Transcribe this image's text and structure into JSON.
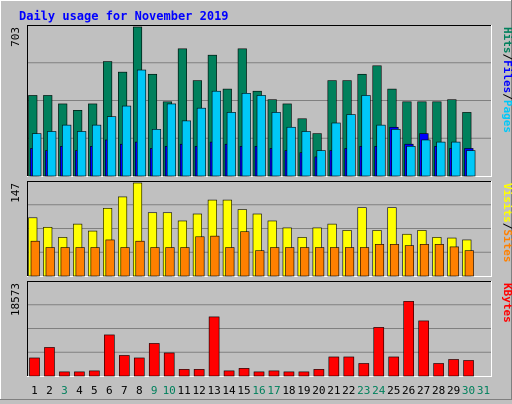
{
  "colors": {
    "background": "#c0c0c0",
    "plot_background": "#c0c0c0",
    "title": "#0000ff",
    "hits": "#00805c",
    "files": "#0000ff",
    "pages": "#00c8f8",
    "visits": "#ffff00",
    "sites": "#ff8000",
    "kbytes": "#ff0000",
    "weekend_day": "#00805c",
    "weekday": "#000000"
  },
  "chart_data": [
    {
      "type": "bar",
      "panel": "hits-files-pages",
      "title": "Daily usage for November 2019",
      "y_max_label": "703",
      "ylim": [
        0,
        703
      ],
      "legend": [
        {
          "text": "Pages",
          "color_key": "pages"
        },
        {
          "text": "/",
          "color_key": "separator"
        },
        {
          "text": "Files",
          "color_key": "files"
        },
        {
          "text": "/",
          "color_key": "separator"
        },
        {
          "text": "Hits",
          "color_key": "hits"
        }
      ],
      "categories": [
        "1",
        "2",
        "3",
        "4",
        "5",
        "6",
        "7",
        "8",
        "9",
        "10",
        "11",
        "12",
        "13",
        "14",
        "15",
        "16",
        "17",
        "18",
        "19",
        "20",
        "21",
        "22",
        "23",
        "24",
        "25",
        "26",
        "27",
        "28",
        "29",
        "30",
        "31"
      ],
      "series": [
        {
          "name": "Hits",
          "values": [
            380,
            380,
            340,
            310,
            340,
            540,
            490,
            703,
            480,
            350,
            600,
            450,
            570,
            410,
            600,
            400,
            360,
            340,
            270,
            200,
            450,
            450,
            480,
            520,
            410,
            350,
            350,
            350,
            360,
            300,
            0
          ]
        },
        {
          "name": "Files",
          "values": [
            130,
            120,
            140,
            120,
            140,
            170,
            150,
            160,
            130,
            140,
            150,
            140,
            160,
            150,
            140,
            140,
            130,
            120,
            110,
            90,
            120,
            130,
            140,
            140,
            230,
            150,
            200,
            140,
            130,
            130,
            0
          ]
        },
        {
          "name": "Pages",
          "values": [
            200,
            210,
            240,
            210,
            240,
            280,
            330,
            500,
            220,
            340,
            260,
            320,
            400,
            300,
            390,
            380,
            300,
            230,
            210,
            120,
            250,
            290,
            380,
            240,
            220,
            140,
            170,
            160,
            160,
            120,
            0
          ]
        }
      ]
    },
    {
      "type": "bar",
      "panel": "visits-sites",
      "y_max_label": "147",
      "ylim": [
        0,
        147
      ],
      "legend": [
        {
          "text": "Sites",
          "color_key": "sites"
        },
        {
          "text": "/",
          "color_key": "separator"
        },
        {
          "text": "Visits",
          "color_key": "visits"
        }
      ],
      "categories": [
        "1",
        "2",
        "3",
        "4",
        "5",
        "6",
        "7",
        "8",
        "9",
        "10",
        "11",
        "12",
        "13",
        "14",
        "15",
        "16",
        "17",
        "18",
        "19",
        "20",
        "21",
        "22",
        "23",
        "24",
        "25",
        "26",
        "27",
        "28",
        "29",
        "30",
        "31"
      ],
      "series": [
        {
          "name": "Visits",
          "values": [
            92,
            77,
            61,
            82,
            71,
            107,
            125,
            147,
            100,
            100,
            87,
            98,
            120,
            120,
            105,
            98,
            87,
            76,
            61,
            76,
            82,
            72,
            108,
            72,
            108,
            66,
            72,
            61,
            60,
            57,
            0
          ]
        },
        {
          "name": "Sites",
          "values": [
            55,
            45,
            45,
            45,
            45,
            57,
            45,
            55,
            45,
            45,
            45,
            62,
            63,
            45,
            70,
            40,
            45,
            45,
            45,
            45,
            45,
            45,
            45,
            50,
            50,
            48,
            50,
            50,
            46,
            40,
            0
          ]
        }
      ]
    },
    {
      "type": "bar",
      "panel": "kbytes",
      "y_max_label": "18573",
      "ylim": [
        0,
        18573
      ],
      "legend": [
        {
          "text": "KBytes",
          "color_key": "kbytes"
        }
      ],
      "categories": [
        "1",
        "2",
        "3",
        "4",
        "5",
        "6",
        "7",
        "8",
        "9",
        "10",
        "11",
        "12",
        "13",
        "14",
        "15",
        "16",
        "17",
        "18",
        "19",
        "20",
        "21",
        "22",
        "23",
        "24",
        "25",
        "26",
        "27",
        "28",
        "29",
        "30",
        "31"
      ],
      "series": [
        {
          "name": "KBytes",
          "values": [
            3600,
            5700,
            820,
            820,
            1020,
            8200,
            4100,
            3600,
            6500,
            4600,
            1320,
            1320,
            11800,
            1020,
            1520,
            820,
            1020,
            820,
            820,
            1320,
            3800,
            3800,
            2500,
            9700,
            3800,
            14900,
            11000,
            2500,
            3300,
            3100,
            0
          ]
        }
      ]
    }
  ],
  "x_axis": {
    "days": [
      {
        "label": "1",
        "weekend": false
      },
      {
        "label": "2",
        "weekend": false
      },
      {
        "label": "3",
        "weekend": true
      },
      {
        "label": "4",
        "weekend": false
      },
      {
        "label": "5",
        "weekend": false
      },
      {
        "label": "6",
        "weekend": false
      },
      {
        "label": "7",
        "weekend": false
      },
      {
        "label": "8",
        "weekend": false
      },
      {
        "label": "9",
        "weekend": true
      },
      {
        "label": "10",
        "weekend": true
      },
      {
        "label": "11",
        "weekend": false
      },
      {
        "label": "12",
        "weekend": false
      },
      {
        "label": "13",
        "weekend": false
      },
      {
        "label": "14",
        "weekend": false
      },
      {
        "label": "15",
        "weekend": false
      },
      {
        "label": "16",
        "weekend": true
      },
      {
        "label": "17",
        "weekend": true
      },
      {
        "label": "18",
        "weekend": false
      },
      {
        "label": "19",
        "weekend": false
      },
      {
        "label": "20",
        "weekend": false
      },
      {
        "label": "21",
        "weekend": false
      },
      {
        "label": "22",
        "weekend": false
      },
      {
        "label": "23",
        "weekend": true
      },
      {
        "label": "24",
        "weekend": true
      },
      {
        "label": "25",
        "weekend": false
      },
      {
        "label": "26",
        "weekend": false
      },
      {
        "label": "27",
        "weekend": false
      },
      {
        "label": "28",
        "weekend": false
      },
      {
        "label": "29",
        "weekend": false
      },
      {
        "label": "30",
        "weekend": true
      },
      {
        "label": "31",
        "weekend": true
      }
    ]
  }
}
